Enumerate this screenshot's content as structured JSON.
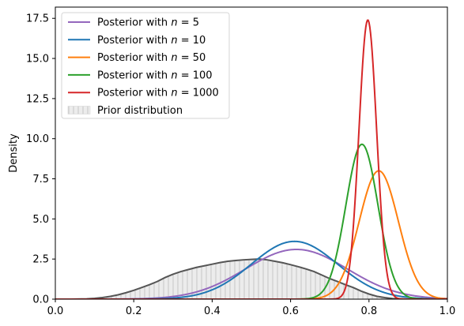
{
  "chart_data": {
    "type": "line",
    "title": "",
    "xlabel": "",
    "ylabel": "Density",
    "xlim": [
      0.0,
      1.0
    ],
    "ylim": [
      0.0,
      18.2
    ],
    "xticks": [
      "0.0",
      "0.2",
      "0.4",
      "0.6",
      "0.8",
      "1.0"
    ],
    "yticks": [
      "0.0",
      "2.5",
      "5.0",
      "7.5",
      "10.0",
      "12.5",
      "15.0",
      "17.5"
    ],
    "legend_position": "top-left",
    "grid": false,
    "series": [
      {
        "name": "Posterior with n = 5",
        "legend_label": {
          "prefix": "Posterior with ",
          "n": "n",
          "eq": " = ",
          "value": "5"
        },
        "color": "#9467bd",
        "peak": {
          "x": 0.615,
          "y": 3.1
        },
        "spread": 0.13
      },
      {
        "name": "Posterior with n = 10",
        "legend_label": {
          "prefix": "Posterior with ",
          "n": "n",
          "eq": " = ",
          "value": "10"
        },
        "color": "#1f77b4",
        "peak": {
          "x": 0.61,
          "y": 3.6
        },
        "spread": 0.11
      },
      {
        "name": "Posterior with n = 50",
        "legend_label": {
          "prefix": "Posterior with ",
          "n": "n",
          "eq": " = ",
          "value": "50"
        },
        "color": "#ff7f0e",
        "peak": {
          "x": 0.825,
          "y": 8.0
        },
        "spread": 0.05
      },
      {
        "name": "Posterior with n = 100",
        "legend_label": {
          "prefix": "Posterior with ",
          "n": "n",
          "eq": " = ",
          "value": "100"
        },
        "color": "#2ca02c",
        "peak": {
          "x": 0.782,
          "y": 9.65
        },
        "spread": 0.041
      },
      {
        "name": "Posterior with n = 1000",
        "legend_label": {
          "prefix": "Posterior with ",
          "n": "n",
          "eq": " = ",
          "value": "1000"
        },
        "color": "#d62728",
        "peak": {
          "x": 0.797,
          "y": 17.4
        },
        "spread": 0.0225
      }
    ],
    "prior": {
      "name": "Prior distribution",
      "line_color": "#555555",
      "fill_color": "#ececec",
      "hatch_color": "#c6c6c6",
      "x": [
        0.0,
        0.04,
        0.08,
        0.1,
        0.12,
        0.14,
        0.16,
        0.18,
        0.2,
        0.22,
        0.24,
        0.26,
        0.28,
        0.3,
        0.32,
        0.34,
        0.36,
        0.38,
        0.4,
        0.42,
        0.44,
        0.46,
        0.48,
        0.5,
        0.52,
        0.54,
        0.56,
        0.58,
        0.6,
        0.62,
        0.64,
        0.66,
        0.68,
        0.7,
        0.72,
        0.74,
        0.76,
        0.78,
        0.8,
        0.82,
        0.84,
        0.86,
        0.88,
        0.9,
        0.94,
        1.0
      ],
      "y": [
        0.0,
        0.0,
        0.02,
        0.05,
        0.1,
        0.17,
        0.27,
        0.4,
        0.55,
        0.72,
        0.9,
        1.1,
        1.35,
        1.55,
        1.72,
        1.85,
        1.98,
        2.08,
        2.18,
        2.28,
        2.36,
        2.41,
        2.45,
        2.48,
        2.5,
        2.45,
        2.36,
        2.27,
        2.15,
        2.02,
        1.88,
        1.72,
        1.5,
        1.28,
        1.1,
        0.9,
        0.72,
        0.5,
        0.32,
        0.18,
        0.1,
        0.04,
        0.02,
        0.0,
        0.0,
        0.0
      ]
    }
  }
}
